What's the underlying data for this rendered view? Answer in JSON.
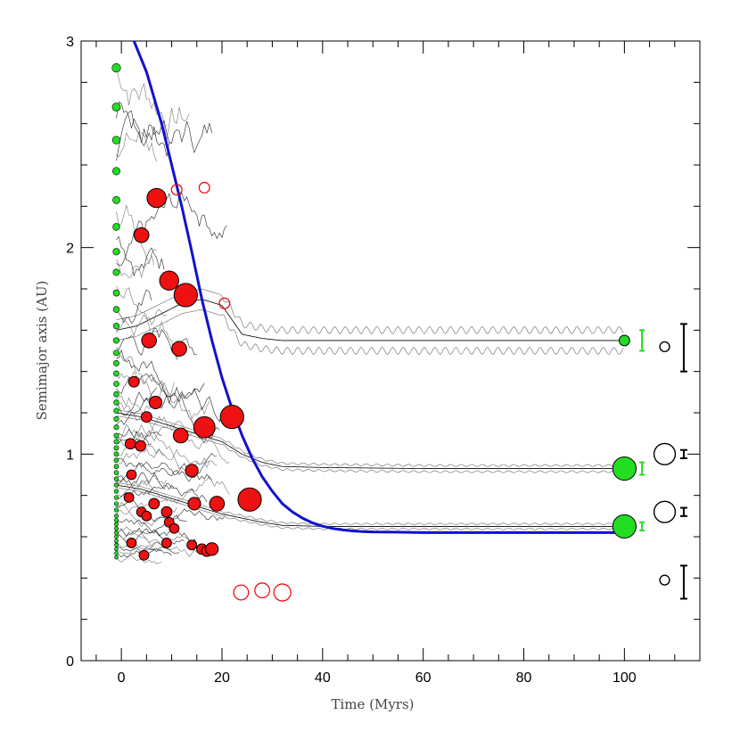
{
  "chart_data": {
    "type": "scatter",
    "title": "",
    "xlabel": "Time (Myrs)",
    "ylabel": "Semimajor axis (AU)",
    "xlim": [
      -8,
      115
    ],
    "ylim": [
      0,
      3
    ],
    "xticks": [
      0,
      20,
      40,
      60,
      80,
      100
    ],
    "yticks": [
      0,
      1,
      2,
      3
    ],
    "grid": false,
    "colors": {
      "initial": "#22dd22",
      "merged": "#ee1111",
      "ejected": "#ee1111",
      "migration": "#1111cc",
      "final": "#22dd22",
      "observed": "#000000",
      "tracks": "#000000"
    },
    "initial_embryos": {
      "x": -1,
      "a": [
        2.87,
        2.68,
        2.52,
        2.37,
        2.23,
        2.1,
        1.98,
        1.88,
        1.78,
        1.7,
        1.62,
        1.55,
        1.49,
        1.44,
        1.39,
        1.34,
        1.29,
        1.25,
        1.21,
        1.17,
        1.13,
        1.09,
        1.06,
        1.03,
        1.0,
        0.97,
        0.94,
        0.91,
        0.88,
        0.85,
        0.82,
        0.79,
        0.76,
        0.73,
        0.7,
        0.68,
        0.66,
        0.64,
        0.62,
        0.6,
        0.58,
        0.56,
        0.54,
        0.52,
        0.5
      ]
    },
    "merger_events": [
      {
        "t": 7.0,
        "a": 2.24,
        "size": 3
      },
      {
        "t": 4.0,
        "a": 2.06,
        "size": 2
      },
      {
        "t": 9.5,
        "a": 1.84,
        "size": 3
      },
      {
        "t": 12.8,
        "a": 1.77,
        "size": 4
      },
      {
        "t": 5.5,
        "a": 1.55,
        "size": 2
      },
      {
        "t": 11.5,
        "a": 1.51,
        "size": 2
      },
      {
        "t": 2.5,
        "a": 1.35,
        "size": 1
      },
      {
        "t": 6.8,
        "a": 1.25,
        "size": 1.5
      },
      {
        "t": 22.0,
        "a": 1.18,
        "size": 4
      },
      {
        "t": 5.0,
        "a": 1.18,
        "size": 1
      },
      {
        "t": 16.5,
        "a": 1.13,
        "size": 3.5
      },
      {
        "t": 11.8,
        "a": 1.09,
        "size": 2
      },
      {
        "t": 1.8,
        "a": 1.05,
        "size": 1
      },
      {
        "t": 3.8,
        "a": 1.04,
        "size": 1
      },
      {
        "t": 14.0,
        "a": 0.92,
        "size": 1.5
      },
      {
        "t": 2.0,
        "a": 0.9,
        "size": 0.8
      },
      {
        "t": 25.5,
        "a": 0.78,
        "size": 4
      },
      {
        "t": 1.5,
        "a": 0.79,
        "size": 0.8
      },
      {
        "t": 19.0,
        "a": 0.76,
        "size": 2
      },
      {
        "t": 14.5,
        "a": 0.76,
        "size": 1.5
      },
      {
        "t": 6.5,
        "a": 0.76,
        "size": 1
      },
      {
        "t": 4.0,
        "a": 0.72,
        "size": 0.8
      },
      {
        "t": 9.0,
        "a": 0.72,
        "size": 1
      },
      {
        "t": 5.0,
        "a": 0.7,
        "size": 0.8
      },
      {
        "t": 9.5,
        "a": 0.67,
        "size": 0.8
      },
      {
        "t": 10.5,
        "a": 0.64,
        "size": 0.8
      },
      {
        "t": 2.0,
        "a": 0.57,
        "size": 0.8
      },
      {
        "t": 9.0,
        "a": 0.57,
        "size": 0.8
      },
      {
        "t": 14.0,
        "a": 0.56,
        "size": 0.8
      },
      {
        "t": 16.0,
        "a": 0.54,
        "size": 1
      },
      {
        "t": 17.0,
        "a": 0.53,
        "size": 1
      },
      {
        "t": 18.0,
        "a": 0.54,
        "size": 1.5
      },
      {
        "t": 4.5,
        "a": 0.51,
        "size": 0.8
      }
    ],
    "ejected_bodies": [
      {
        "t": 11.0,
        "a": 2.28,
        "size": 1
      },
      {
        "t": 16.5,
        "a": 2.29,
        "size": 1
      },
      {
        "t": 20.5,
        "a": 1.73,
        "size": 1
      },
      {
        "t": 23.8,
        "a": 0.33,
        "size": 2
      },
      {
        "t": 28.0,
        "a": 0.34,
        "size": 2
      },
      {
        "t": 32.0,
        "a": 0.33,
        "size": 2.5
      }
    ],
    "migration_curve": {
      "t": [
        2.5,
        5,
        8,
        10,
        12,
        14,
        16,
        18,
        20,
        22,
        24,
        26,
        28,
        30,
        32,
        34,
        36,
        38,
        40,
        42,
        44,
        46,
        48,
        50,
        55,
        60,
        70,
        80,
        90,
        100
      ],
      "a": [
        3.0,
        2.85,
        2.6,
        2.4,
        2.2,
        1.98,
        1.75,
        1.55,
        1.37,
        1.22,
        1.09,
        0.98,
        0.89,
        0.82,
        0.76,
        0.72,
        0.69,
        0.667,
        0.651,
        0.64,
        0.633,
        0.628,
        0.625,
        0.623,
        0.622,
        0.62,
        0.62,
        0.62,
        0.62,
        0.62
      ]
    },
    "final_planets": [
      {
        "t": 100,
        "a": 1.55,
        "size": 1,
        "range": [
          1.5,
          1.6
        ]
      },
      {
        "t": 100,
        "a": 0.93,
        "size": 4,
        "range": [
          0.9,
          0.96
        ]
      },
      {
        "t": 100,
        "a": 0.65,
        "size": 4,
        "range": [
          0.63,
          0.67
        ]
      }
    ],
    "observed_planets": [
      {
        "t": 108,
        "a": 1.52,
        "size": 0.8,
        "range": [
          1.4,
          1.63
        ]
      },
      {
        "t": 108,
        "a": 1.0,
        "size": 3.5,
        "range": [
          0.98,
          1.02
        ]
      },
      {
        "t": 108,
        "a": 0.72,
        "size": 3.5,
        "range": [
          0.7,
          0.74
        ]
      },
      {
        "t": 108,
        "a": 0.39,
        "size": 0.8,
        "range": [
          0.3,
          0.46
        ]
      }
    ],
    "tracks": [
      {
        "t": [
          -1,
          3,
          8,
          12,
          16,
          20,
          24,
          28,
          32,
          36,
          40,
          60,
          80,
          100
        ],
        "a": [
          1.6,
          1.62,
          1.68,
          1.73,
          1.75,
          1.72,
          1.58,
          1.56,
          1.55,
          1.55,
          1.55,
          1.55,
          1.55,
          1.55
        ],
        "osc": 0.05
      },
      {
        "t": [
          -1,
          4,
          8,
          12,
          16,
          20,
          22,
          24,
          26,
          28,
          32,
          40,
          60,
          100
        ],
        "a": [
          1.2,
          1.18,
          1.15,
          1.12,
          1.09,
          1.06,
          1.03,
          1.0,
          0.98,
          0.96,
          0.94,
          0.935,
          0.93,
          0.93
        ],
        "osc": 0.015
      },
      {
        "t": [
          -1,
          4,
          8,
          12,
          16,
          20,
          24,
          28,
          32,
          40,
          60,
          100
        ],
        "a": [
          0.85,
          0.83,
          0.8,
          0.77,
          0.74,
          0.71,
          0.69,
          0.67,
          0.655,
          0.65,
          0.65,
          0.65
        ],
        "osc": 0.012
      }
    ]
  }
}
